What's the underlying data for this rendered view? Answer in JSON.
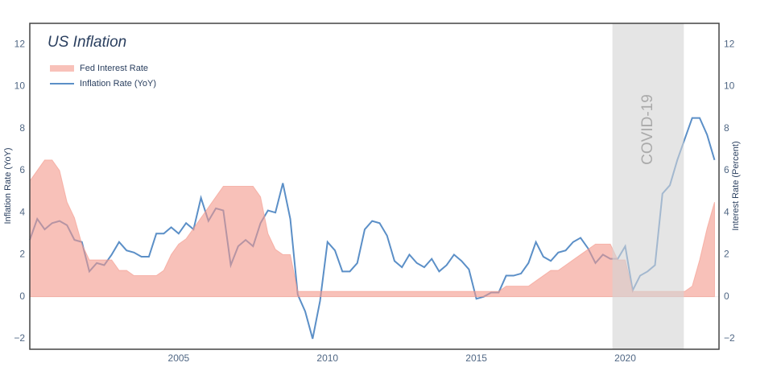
{
  "chart_data": {
    "type": "line-area-dual",
    "title": "US Inflation",
    "y_label": "Inflation Rate (YoY)",
    "y2_label": "Interest Rate (Percent)",
    "x": [
      2000,
      2000.25,
      2000.5,
      2000.75,
      2001,
      2001.25,
      2001.5,
      2001.75,
      2002,
      2002.25,
      2002.5,
      2002.75,
      2003,
      2003.25,
      2003.5,
      2003.75,
      2004,
      2004.25,
      2004.5,
      2004.75,
      2005,
      2005.25,
      2005.5,
      2005.75,
      2006,
      2006.25,
      2006.5,
      2006.75,
      2007,
      2007.25,
      2007.5,
      2007.75,
      2008,
      2008.25,
      2008.5,
      2008.75,
      2009,
      2009.25,
      2009.5,
      2009.75,
      2010,
      2010.25,
      2010.5,
      2010.75,
      2011,
      2011.25,
      2011.5,
      2011.75,
      2012,
      2012.25,
      2012.5,
      2012.75,
      2013,
      2013.25,
      2013.5,
      2013.75,
      2014,
      2014.25,
      2014.5,
      2014.75,
      2015,
      2015.25,
      2015.5,
      2015.75,
      2016,
      2016.25,
      2016.5,
      2016.75,
      2017,
      2017.25,
      2017.5,
      2017.75,
      2018,
      2018.25,
      2018.5,
      2018.75,
      2019,
      2019.25,
      2019.5,
      2019.75,
      2020,
      2020.25,
      2020.5,
      2020.75,
      2021,
      2021.25,
      2021.5,
      2021.75,
      2022,
      2022.25,
      2022.5,
      2022.75,
      2023
    ],
    "series": [
      {
        "name": "Fed Interest Rate",
        "kind": "area",
        "axis": "y2",
        "color": "#f4978b",
        "values": [
          5.5,
          6,
          6.5,
          6.5,
          6,
          4.5,
          3.75,
          2.5,
          1.75,
          1.75,
          1.75,
          1.75,
          1.25,
          1.25,
          1,
          1,
          1,
          1,
          1.25,
          2,
          2.5,
          2.75,
          3.25,
          3.75,
          4.25,
          4.75,
          5.25,
          5.25,
          5.25,
          5.25,
          5.25,
          4.75,
          3,
          2.25,
          2,
          2,
          0.25,
          0.25,
          0.25,
          0.25,
          0.25,
          0.25,
          0.25,
          0.25,
          0.25,
          0.25,
          0.25,
          0.25,
          0.25,
          0.25,
          0.25,
          0.25,
          0.25,
          0.25,
          0.25,
          0.25,
          0.25,
          0.25,
          0.25,
          0.25,
          0.25,
          0.25,
          0.25,
          0.25,
          0.5,
          0.5,
          0.5,
          0.5,
          0.75,
          1,
          1.25,
          1.25,
          1.5,
          1.75,
          2,
          2.25,
          2.5,
          2.5,
          2.5,
          1.75,
          1.75,
          0.25,
          0.25,
          0.25,
          0.25,
          0.25,
          0.25,
          0.25,
          0.25,
          0.5,
          1.75,
          3.25,
          4.5
        ]
      },
      {
        "name": "Inflation Rate (YoY)",
        "kind": "line",
        "color": "#5b8fc7",
        "values": [
          2.7,
          3.7,
          3.2,
          3.5,
          3.6,
          3.4,
          2.7,
          2.6,
          1.2,
          1.6,
          1.5,
          2,
          2.6,
          2.2,
          2.1,
          1.9,
          1.9,
          3,
          3,
          3.3,
          3,
          3.5,
          3.2,
          4.7,
          3.6,
          4.2,
          4.1,
          1.5,
          2.4,
          2.7,
          2.4,
          3.5,
          4.1,
          4,
          5.4,
          3.7,
          0.1,
          -0.7,
          -2,
          -0.2,
          2.6,
          2.2,
          1.2,
          1.2,
          1.6,
          3.2,
          3.6,
          3.5,
          2.9,
          1.7,
          1.4,
          2,
          1.6,
          1.4,
          1.8,
          1.2,
          1.5,
          2,
          1.7,
          1.3,
          -0.1,
          0,
          0.2,
          0.2,
          1,
          1,
          1.1,
          1.6,
          2.6,
          1.9,
          1.7,
          2.1,
          2.2,
          2.6,
          2.8,
          2.3,
          1.6,
          2,
          1.8,
          1.8,
          2.4,
          0.3,
          1,
          1.2,
          1.5,
          4.9,
          5.3,
          6.5,
          7.5,
          8.5,
          8.5,
          7.7,
          6.5
        ]
      }
    ],
    "shade": {
      "x0": 2019.57,
      "x1": 2021.97,
      "label": "COVID-19",
      "color": "#d3d3d3"
    },
    "xlim": [
      2000,
      2023.15
    ],
    "xticks": [
      2005,
      2010,
      2015,
      2020
    ],
    "ylim": [
      -2.5,
      13
    ],
    "yticks": [
      {
        "value": -2,
        "label": "−2"
      },
      0,
      2,
      4,
      6,
      8,
      10,
      12
    ],
    "y2lim": [
      -2.5,
      13
    ],
    "y2ticks": [
      {
        "value": -2,
        "label": "−2"
      },
      0,
      2,
      4,
      6,
      8,
      10,
      12
    ],
    "legend": "top-left"
  }
}
